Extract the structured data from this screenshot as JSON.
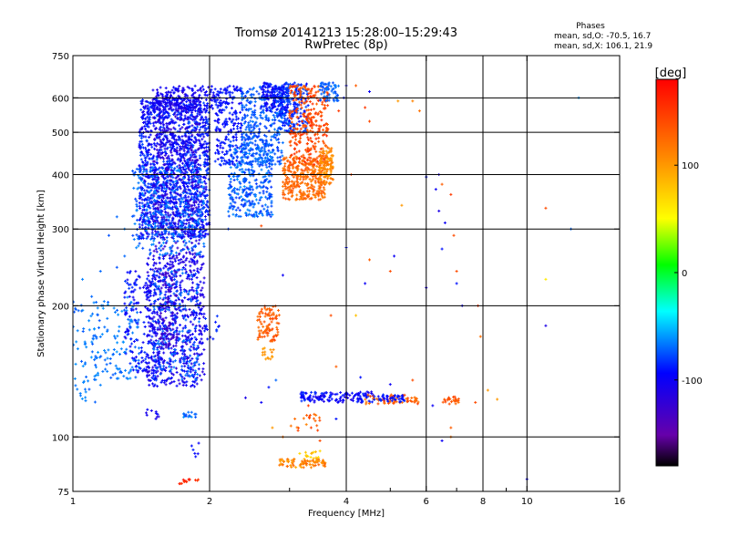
{
  "header": {
    "title_line1": "Tromsø 20141213 15:28:00–15:29:43",
    "title_line2": "RwPretec (8p)",
    "stats_title": "Phases",
    "stats_o": "mean, sd,O: -70.5, 16.7",
    "stats_x": "mean, sd,X: 106.1, 21.9"
  },
  "chart_data": {
    "type": "scatter",
    "xlabel": "Frequency [MHz]",
    "ylabel": "Stationary phase Virtual Height [km]",
    "xscale": "log",
    "yscale": "log",
    "xlim": [
      1,
      16
    ],
    "ylim": [
      75,
      750
    ],
    "x_ticks": [
      1,
      2,
      4,
      6,
      8,
      10,
      16
    ],
    "x_ticklabels": [
      "1",
      "2",
      "4",
      "6",
      "8",
      "10",
      "16"
    ],
    "x_minor_ticks": [
      3,
      5,
      7,
      9
    ],
    "y_ticks": [
      75,
      100,
      200,
      300,
      400,
      500,
      600,
      750
    ],
    "y_ticklabels": [
      "75",
      "100",
      "200",
      "300",
      "400",
      "500",
      "600",
      "750"
    ],
    "x_gridlines": [
      2,
      4,
      6,
      8,
      10
    ],
    "y_gridlines": [
      100,
      200,
      300,
      400,
      500,
      600
    ],
    "grid": true,
    "colorbar": {
      "label": "[deg]",
      "range": [
        -180,
        180
      ],
      "ticks": [
        100,
        0,
        -100
      ],
      "ticklabels": [
        "100",
        "0",
        "-100"
      ],
      "colormap": "rainbow",
      "colors": [
        "#000000",
        "#6600aa",
        "#0000ff",
        "#00ffff",
        "#00ff00",
        "#ffff00",
        "#ff8800",
        "#ff0000"
      ],
      "placement": "right"
    },
    "clusters": [
      {
        "f": [
          1.4,
          2.0
        ],
        "h": [
          285,
          600
        ],
        "phase": [
          -110,
          -75
        ],
        "n": 1500
      },
      {
        "f": [
          1.5,
          1.9
        ],
        "h": [
          250,
          620
        ],
        "phase": [
          -130,
          -110
        ],
        "n": 350
      },
      {
        "f": [
          1.35,
          1.95
        ],
        "h": [
          260,
          420
        ],
        "phase": [
          -80,
          -60
        ],
        "n": 300
      },
      {
        "f": [
          1.5,
          2.05
        ],
        "h": [
          560,
          640
        ],
        "phase": [
          -115,
          -90
        ],
        "n": 180
      },
      {
        "f": [
          2.05,
          2.35
        ],
        "h": [
          420,
          640
        ],
        "phase": [
          -105,
          -80
        ],
        "n": 200
      },
      {
        "f": [
          2.2,
          2.75
        ],
        "h": [
          320,
          470
        ],
        "phase": [
          -85,
          -60
        ],
        "n": 350
      },
      {
        "f": [
          2.35,
          2.9
        ],
        "h": [
          420,
          640
        ],
        "phase": [
          -85,
          -65
        ],
        "n": 320
      },
      {
        "f": [
          2.6,
          3.0
        ],
        "h": [
          560,
          650
        ],
        "phase": [
          -110,
          -80
        ],
        "n": 150
      },
      {
        "f": [
          2.85,
          3.3
        ],
        "h": [
          500,
          650
        ],
        "phase": [
          -95,
          -70
        ],
        "n": 220
      },
      {
        "f": [
          2.9,
          3.6
        ],
        "h": [
          350,
          440
        ],
        "phase": [
          110,
          140
        ],
        "n": 320
      },
      {
        "f": [
          3.0,
          3.65
        ],
        "h": [
          420,
          640
        ],
        "phase": [
          125,
          160
        ],
        "n": 300
      },
      {
        "f": [
          3.5,
          3.75
        ],
        "h": [
          380,
          460
        ],
        "phase": [
          95,
          120
        ],
        "n": 100
      },
      {
        "f": [
          3.5,
          3.85
        ],
        "h": [
          590,
          650
        ],
        "phase": [
          -80,
          -65
        ],
        "n": 60
      },
      {
        "f": [
          1.0,
          1.15
        ],
        "h": [
          120,
          205
        ],
        "phase": [
          -75,
          -60
        ],
        "n": 60
      },
      {
        "f": [
          1.1,
          1.4
        ],
        "h": [
          135,
          210
        ],
        "phase": [
          -75,
          -60
        ],
        "n": 120
      },
      {
        "f": [
          1.3,
          1.55
        ],
        "h": [
          140,
          240
        ],
        "phase": [
          -105,
          -80
        ],
        "n": 180
      },
      {
        "f": [
          1.45,
          1.95
        ],
        "h": [
          130,
          260
        ],
        "phase": [
          -120,
          -90
        ],
        "n": 600
      },
      {
        "f": [
          1.5,
          1.9
        ],
        "h": [
          135,
          245
        ],
        "phase": [
          -80,
          -65
        ],
        "n": 200
      },
      {
        "f": [
          1.55,
          1.7
        ],
        "h": [
          160,
          240
        ],
        "phase": [
          -135,
          -120
        ],
        "n": 80
      },
      {
        "f": [
          2.55,
          2.85
        ],
        "h": [
          165,
          200
        ],
        "phase": [
          120,
          145
        ],
        "n": 90
      },
      {
        "f": [
          2.6,
          2.8
        ],
        "h": [
          150,
          160
        ],
        "phase": [
          95,
          110
        ],
        "n": 15
      },
      {
        "f": [
          3.15,
          4.6
        ],
        "h": [
          120,
          127
        ],
        "phase": [
          -110,
          -80
        ],
        "n": 140
      },
      {
        "f": [
          4.4,
          5.8
        ],
        "h": [
          119,
          125
        ],
        "phase": [
          115,
          150
        ],
        "n": 60
      },
      {
        "f": [
          4.6,
          5.4
        ],
        "h": [
          120,
          125
        ],
        "phase": [
          -100,
          -80
        ],
        "n": 40
      },
      {
        "f": [
          6.5,
          7.1
        ],
        "h": [
          119,
          124
        ],
        "phase": [
          120,
          150
        ],
        "n": 25
      },
      {
        "f": [
          2.85,
          3.6
        ],
        "h": [
          85,
          89
        ],
        "phase": [
          90,
          130
        ],
        "n": 80
      },
      {
        "f": [
          3.15,
          3.55
        ],
        "h": [
          89,
          93
        ],
        "phase": [
          60,
          90
        ],
        "n": 15
      },
      {
        "f": [
          3.0,
          3.5
        ],
        "h": [
          103,
          113
        ],
        "phase": [
          110,
          150
        ],
        "n": 20
      },
      {
        "f": [
          1.7,
          1.9
        ],
        "h": [
          78,
          80
        ],
        "phase": [
          150,
          175
        ],
        "n": 15
      },
      {
        "f": [
          1.75,
          1.9
        ],
        "h": [
          111,
          114
        ],
        "phase": [
          -80,
          -60
        ],
        "n": 15
      },
      {
        "f": [
          1.45,
          1.55
        ],
        "h": [
          110,
          116
        ],
        "phase": [
          -115,
          -90
        ],
        "n": 10
      },
      {
        "f": [
          1.8,
          1.9
        ],
        "h": [
          90,
          97
        ],
        "phase": [
          -100,
          -85
        ],
        "n": 6
      },
      {
        "f": [
          1.95,
          2.1
        ],
        "h": [
          165,
          190
        ],
        "phase": [
          -105,
          -80
        ],
        "n": 15
      }
    ],
    "scattered_points": [
      {
        "f": 4.2,
        "h": 640,
        "phase": 130
      },
      {
        "f": 4.5,
        "h": 620,
        "phase": -100
      },
      {
        "f": 4.4,
        "h": 570,
        "phase": 150
      },
      {
        "f": 4.5,
        "h": 530,
        "phase": 140
      },
      {
        "f": 5.2,
        "h": 590,
        "phase": 100
      },
      {
        "f": 5.8,
        "h": 560,
        "phase": 120
      },
      {
        "f": 6.0,
        "h": 395,
        "phase": -90
      },
      {
        "f": 6.4,
        "h": 400,
        "phase": -110
      },
      {
        "f": 6.5,
        "h": 380,
        "phase": 130
      },
      {
        "f": 6.3,
        "h": 370,
        "phase": -100
      },
      {
        "f": 6.4,
        "h": 330,
        "phase": -110
      },
      {
        "f": 6.6,
        "h": 310,
        "phase": -100
      },
      {
        "f": 6.8,
        "h": 360,
        "phase": 150
      },
      {
        "f": 6.9,
        "h": 290,
        "phase": 140
      },
      {
        "f": 5.3,
        "h": 340,
        "phase": 100
      },
      {
        "f": 4.1,
        "h": 400,
        "phase": 140
      },
      {
        "f": 4.0,
        "h": 272,
        "phase": -90
      },
      {
        "f": 4.5,
        "h": 255,
        "phase": 130
      },
      {
        "f": 5.1,
        "h": 260,
        "phase": -100
      },
      {
        "f": 6.5,
        "h": 270,
        "phase": -90
      },
      {
        "f": 7.0,
        "h": 240,
        "phase": 140
      },
      {
        "f": 7.0,
        "h": 225,
        "phase": -90
      },
      {
        "f": 6.0,
        "h": 220,
        "phase": -110
      },
      {
        "f": 5.0,
        "h": 240,
        "phase": 140
      },
      {
        "f": 4.4,
        "h": 225,
        "phase": -100
      },
      {
        "f": 2.9,
        "h": 235,
        "phase": -100
      },
      {
        "f": 2.6,
        "h": 305,
        "phase": 140
      },
      {
        "f": 2.2,
        "h": 300,
        "phase": -80
      },
      {
        "f": 7.8,
        "h": 200,
        "phase": 150
      },
      {
        "f": 7.9,
        "h": 170,
        "phase": 120
      },
      {
        "f": 11.0,
        "h": 335,
        "phase": 140
      },
      {
        "f": 11.0,
        "h": 230,
        "phase": 60
      },
      {
        "f": 11.0,
        "h": 180,
        "phase": -110
      },
      {
        "f": 12.5,
        "h": 300,
        "phase": -70
      },
      {
        "f": 13.0,
        "h": 600,
        "phase": -60
      },
      {
        "f": 10.0,
        "h": 80,
        "phase": -100
      },
      {
        "f": 6.5,
        "h": 98,
        "phase": -100
      },
      {
        "f": 6.8,
        "h": 100,
        "phase": 120
      },
      {
        "f": 6.8,
        "h": 105,
        "phase": 130
      },
      {
        "f": 8.2,
        "h": 128,
        "phase": 100
      },
      {
        "f": 7.7,
        "h": 120,
        "phase": 140
      },
      {
        "f": 6.2,
        "h": 118,
        "phase": -100
      },
      {
        "f": 3.7,
        "h": 190,
        "phase": 140
      },
      {
        "f": 4.2,
        "h": 190,
        "phase": 80
      },
      {
        "f": 3.8,
        "h": 145,
        "phase": 130
      },
      {
        "f": 4.3,
        "h": 137,
        "phase": -90
      },
      {
        "f": 5.0,
        "h": 132,
        "phase": -100
      },
      {
        "f": 5.6,
        "h": 135,
        "phase": 140
      },
      {
        "f": 2.6,
        "h": 120,
        "phase": -100
      },
      {
        "f": 2.4,
        "h": 123,
        "phase": -110
      },
      {
        "f": 3.8,
        "h": 110,
        "phase": -90
      },
      {
        "f": 2.8,
        "h": 135,
        "phase": -70
      },
      {
        "f": 8.6,
        "h": 122,
        "phase": 100
      },
      {
        "f": 7.2,
        "h": 200,
        "phase": -100
      },
      {
        "f": 5.6,
        "h": 590,
        "phase": 110
      },
      {
        "f": 4.0,
        "h": 640,
        "phase": -100
      },
      {
        "f": 3.95,
        "h": 600,
        "phase": -90
      },
      {
        "f": 3.85,
        "h": 560,
        "phase": 150
      },
      {
        "f": 1.25,
        "h": 320,
        "phase": -70
      },
      {
        "f": 1.2,
        "h": 290,
        "phase": -75
      },
      {
        "f": 1.3,
        "h": 300,
        "phase": -65
      },
      {
        "f": 1.15,
        "h": 240,
        "phase": -70
      },
      {
        "f": 1.05,
        "h": 230,
        "phase": -65
      },
      {
        "f": 1.1,
        "h": 210,
        "phase": -70
      },
      {
        "f": 1.25,
        "h": 245,
        "phase": -75
      },
      {
        "f": 1.3,
        "h": 260,
        "phase": -70
      },
      {
        "f": 2.3,
        "h": 370,
        "phase": -80
      },
      {
        "f": 2.45,
        "h": 340,
        "phase": -70
      },
      {
        "f": 2.7,
        "h": 130,
        "phase": -90
      },
      {
        "f": 3.3,
        "h": 118,
        "phase": 150
      },
      {
        "f": 2.75,
        "h": 105,
        "phase": 100
      },
      {
        "f": 2.9,
        "h": 100,
        "phase": 120
      },
      {
        "f": 3.5,
        "h": 98,
        "phase": 140
      },
      {
        "f": 1.8,
        "h": 235,
        "phase": -100
      },
      {
        "f": 1.85,
        "h": 250,
        "phase": -110
      }
    ]
  }
}
